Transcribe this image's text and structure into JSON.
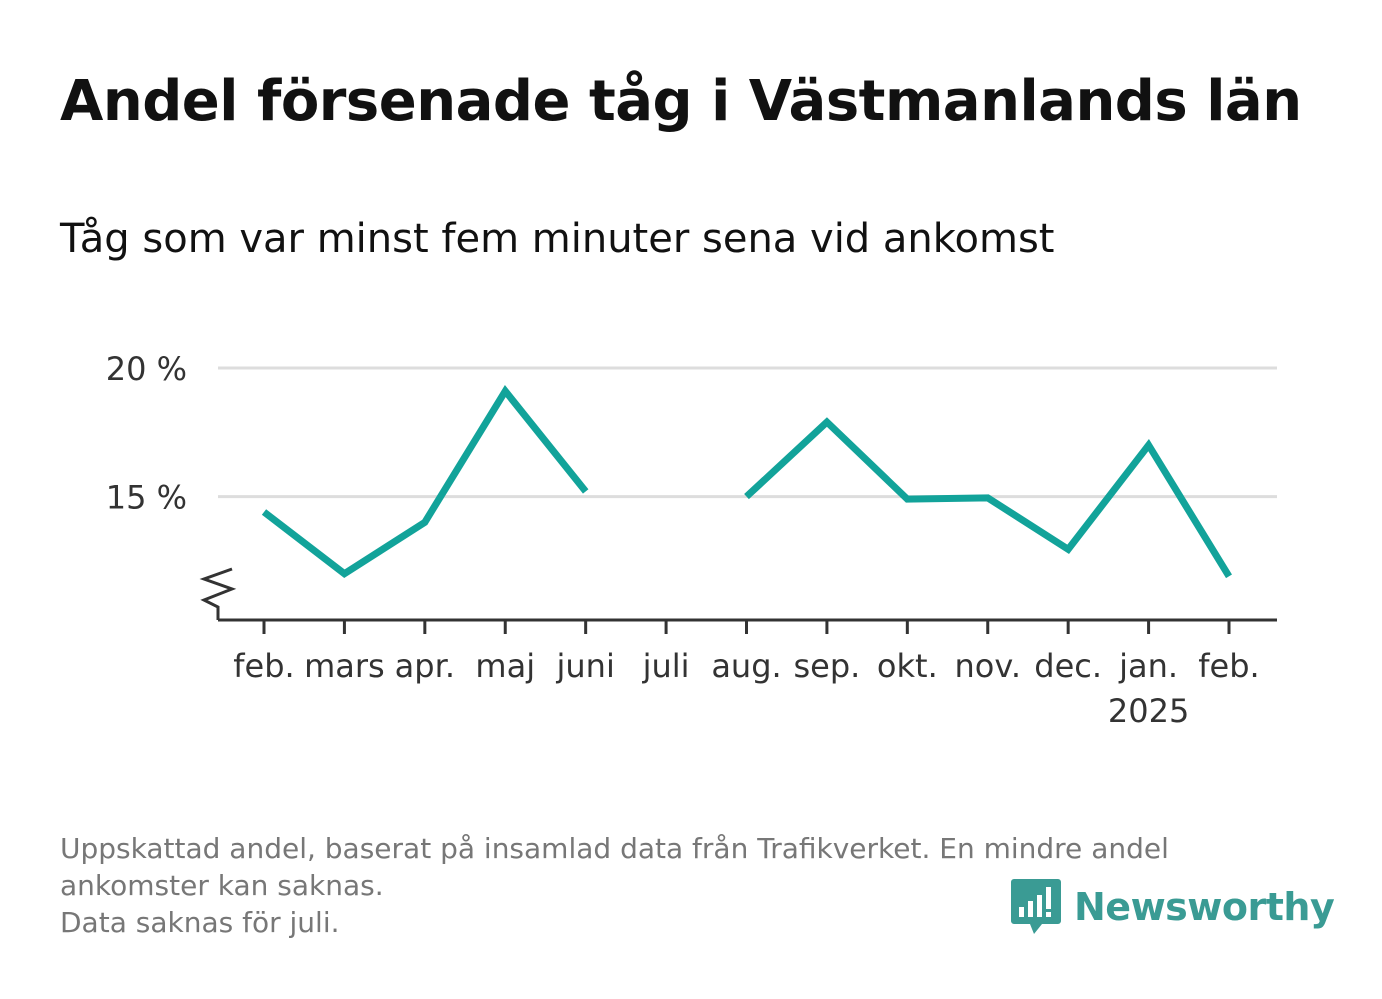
{
  "title": "Andel försenade tåg i Västmanlands län",
  "subtitle": "Tåg som var minst fem minuter sena vid ankomst",
  "footnote": {
    "line1": "Uppskattad andel, baserat på insamlad data från Trafikverket. En mindre andel",
    "line2": "ankomster kan saknas.",
    "line3": "Data saknas för juli."
  },
  "brand": {
    "name": "Newsworthy",
    "color": "#3a9b94",
    "icon": "bar-chart-speech-bubble-icon"
  },
  "colors": {
    "line": "#12a39a",
    "grid": "#dddddd",
    "axis": "#333333"
  },
  "chart_data": {
    "type": "line",
    "title": "Andel försenade tåg i Västmanlands län",
    "subtitle": "Tåg som var minst fem minuter sena vid ankomst",
    "categories": [
      "feb.",
      "mars",
      "apr.",
      "maj",
      "juni",
      "juli",
      "aug.",
      "sep.",
      "okt.",
      "nov.",
      "dec.",
      "jan.",
      "feb."
    ],
    "category_sublabels": [
      "",
      "",
      "",
      "",
      "",
      "",
      "",
      "",
      "",
      "",
      "",
      "2025",
      ""
    ],
    "series": [
      {
        "values": [
          14.4,
          12.0,
          14.0,
          19.1,
          15.2,
          null,
          15.0,
          17.9,
          14.9,
          14.95,
          12.95,
          17.0,
          11.9
        ]
      }
    ],
    "yticks": [
      15,
      20
    ],
    "ytick_labels": [
      "15 %",
      "20 %"
    ],
    "ylim": [
      10.2,
      20
    ],
    "y_axis_break": true,
    "grid": true,
    "legend": "none",
    "xlabel": "",
    "ylabel": ""
  }
}
